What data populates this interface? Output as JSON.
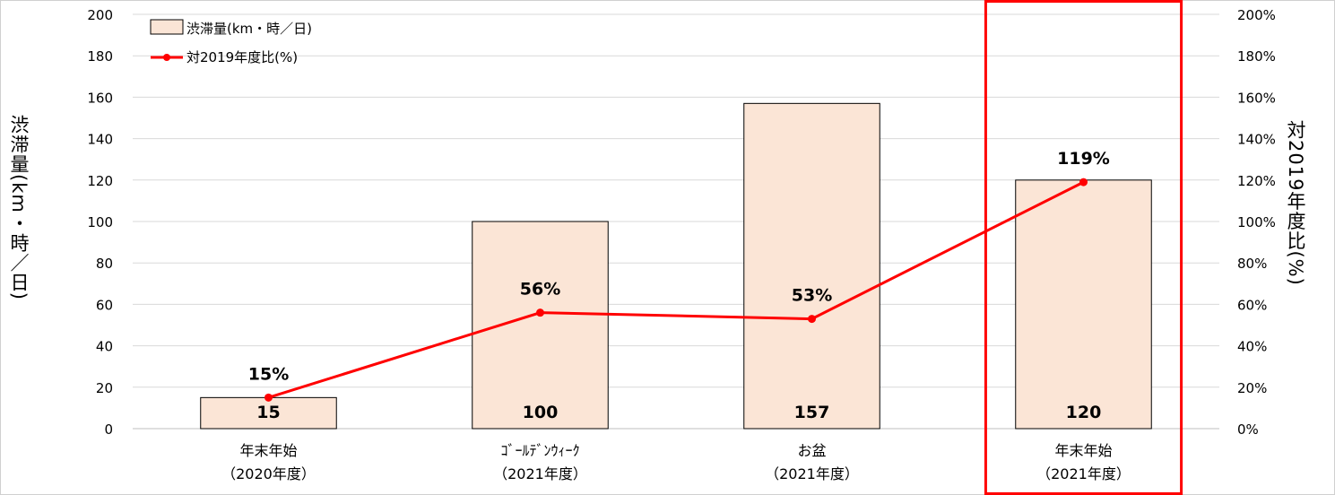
{
  "chart_data": {
    "type": "bar+line",
    "categories": [
      {
        "line1": "年末年始",
        "line2": "（2020年度）"
      },
      {
        "line1": "ｺﾞｰﾙﾃﾞﾝｳｨｰｸ",
        "line2": "（2021年度）"
      },
      {
        "line1": "お盆",
        "line2": "（2021年度）"
      },
      {
        "line1": "年末年始",
        "line2": "（2021年度）"
      }
    ],
    "series": [
      {
        "name": "渋滞量(km・時／日)",
        "kind": "bar",
        "axis": "left",
        "values": [
          15,
          100,
          157,
          120
        ],
        "labels": [
          "15",
          "100",
          "157",
          "120"
        ],
        "color": "#fbe5d6",
        "edge": "#000000"
      },
      {
        "name": "対2019年度比(%)",
        "kind": "line",
        "axis": "right",
        "values": [
          15,
          56,
          53,
          119
        ],
        "labels": [
          "15%",
          "56%",
          "53%",
          "119%"
        ],
        "color": "#ff0000"
      }
    ],
    "ylabel_left": "渋滞量(km・時／日)",
    "ylabel_right": "対2019年度比(%)",
    "ylim_left": [
      0,
      200
    ],
    "ylim_right": [
      0,
      200
    ],
    "yticks_left": [
      "0",
      "20",
      "40",
      "60",
      "80",
      "100",
      "120",
      "140",
      "160",
      "180",
      "200"
    ],
    "yticks_right": [
      "0%",
      "20%",
      "40%",
      "60%",
      "80%",
      "100%",
      "120%",
      "140%",
      "160%",
      "180%",
      "200%"
    ],
    "grid": true,
    "legend_position": "top-left",
    "highlight_category_index": 3,
    "highlight_color": "#ff0000"
  }
}
